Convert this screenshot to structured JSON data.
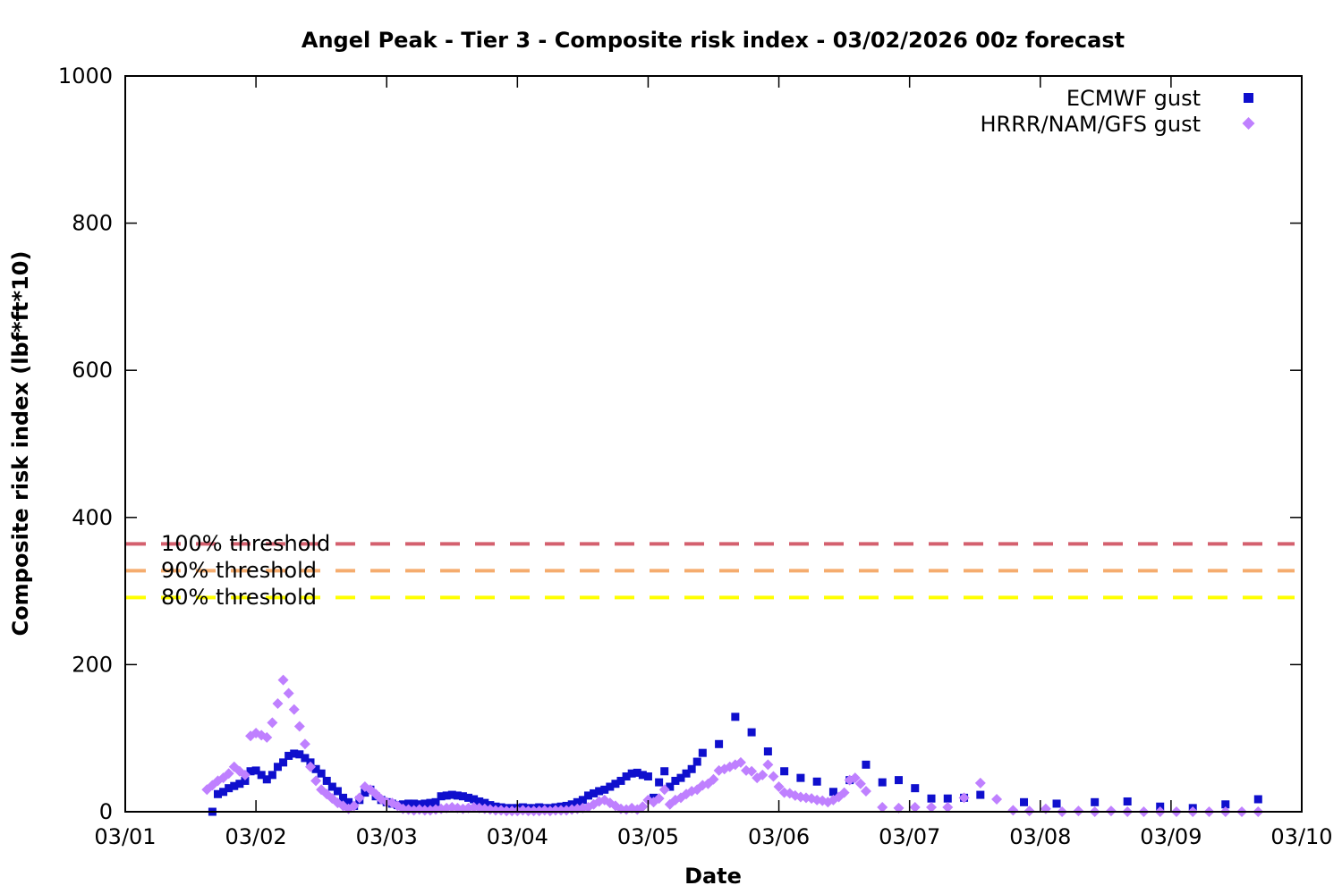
{
  "title": "Angel Peak - Tier 3 - Composite risk index - 03/02/2026 00z forecast",
  "colors": {
    "ecmwf": "#0f0fcd",
    "hrrr": "#bf80ff",
    "threshold_100": "#d4606e",
    "threshold_90": "#f5ac6e",
    "threshold_80": "#ffff00",
    "axis": "#000000",
    "background": "#ffffff"
  },
  "chart_data": {
    "type": "scatter",
    "title": "Angel Peak - Tier 3 - Composite risk index - 03/02/2026 00z forecast",
    "xlabel": "Date",
    "ylabel": "Composite risk index (lbf*ft*10)",
    "x_ticks": [
      "03/01",
      "03/02",
      "03/03",
      "03/04",
      "03/05",
      "03/06",
      "03/07",
      "03/08",
      "03/09",
      "03/10"
    ],
    "y_ticks": [
      0,
      200,
      400,
      600,
      800,
      1000
    ],
    "ylim": [
      0,
      1000
    ],
    "xlim_days": [
      0,
      9
    ],
    "x_unit": "hours since 03/01 00:00",
    "grid": false,
    "legend_position": "top-right-inside",
    "thresholds": [
      {
        "label": "100% threshold",
        "value": 364.0,
        "color": "#d4606e"
      },
      {
        "label": "90% threshold",
        "value": 327.6,
        "color": "#f5ac6e"
      },
      {
        "label": "80% threshold",
        "value": 291.2,
        "color": "#ffff00"
      }
    ],
    "series": [
      {
        "name": "ECMWF gust",
        "marker": "square",
        "color": "#0f0fcd",
        "points": [
          [
            16,
            0
          ],
          [
            17,
            24
          ],
          [
            18,
            27
          ],
          [
            19,
            32
          ],
          [
            20,
            35
          ],
          [
            21,
            38
          ],
          [
            22,
            42
          ],
          [
            23,
            55
          ],
          [
            24,
            56
          ],
          [
            25,
            50
          ],
          [
            26,
            44
          ],
          [
            27,
            50
          ],
          [
            28,
            61
          ],
          [
            29,
            67
          ],
          [
            30,
            76
          ],
          [
            31,
            79
          ],
          [
            32,
            78
          ],
          [
            33,
            73
          ],
          [
            34,
            67
          ],
          [
            35,
            58
          ],
          [
            36,
            52
          ],
          [
            37,
            42
          ],
          [
            38,
            34
          ],
          [
            39,
            28
          ],
          [
            40,
            19
          ],
          [
            41,
            13
          ],
          [
            42,
            8
          ],
          [
            43,
            16
          ],
          [
            44,
            26
          ],
          [
            45,
            30
          ],
          [
            46,
            21
          ],
          [
            47,
            16
          ],
          [
            48,
            13
          ],
          [
            49,
            11
          ],
          [
            50,
            9
          ],
          [
            51,
            10
          ],
          [
            52,
            11
          ],
          [
            53,
            11
          ],
          [
            54,
            10
          ],
          [
            55,
            11
          ],
          [
            56,
            12
          ],
          [
            57,
            13
          ],
          [
            58,
            21
          ],
          [
            59,
            22
          ],
          [
            60,
            23
          ],
          [
            61,
            22
          ],
          [
            62,
            21
          ],
          [
            63,
            19
          ],
          [
            64,
            17
          ],
          [
            65,
            14
          ],
          [
            66,
            12
          ],
          [
            67,
            9
          ],
          [
            68,
            7
          ],
          [
            69,
            6
          ],
          [
            70,
            5
          ],
          [
            71,
            5
          ],
          [
            72,
            5
          ],
          [
            73,
            6
          ],
          [
            74,
            5
          ],
          [
            75,
            5
          ],
          [
            76,
            6
          ],
          [
            77,
            5
          ],
          [
            78,
            5
          ],
          [
            79,
            6
          ],
          [
            80,
            7
          ],
          [
            81,
            8
          ],
          [
            82,
            10
          ],
          [
            83,
            13
          ],
          [
            84,
            16
          ],
          [
            85,
            22
          ],
          [
            86,
            25
          ],
          [
            87,
            28
          ],
          [
            88,
            30
          ],
          [
            89,
            34
          ],
          [
            90,
            38
          ],
          [
            91,
            42
          ],
          [
            92,
            48
          ],
          [
            93,
            52
          ],
          [
            94,
            53
          ],
          [
            95,
            50
          ],
          [
            96,
            48
          ],
          [
            97,
            19
          ],
          [
            98,
            40
          ],
          [
            99,
            55
          ],
          [
            100,
            34
          ],
          [
            101,
            42
          ],
          [
            102,
            46
          ],
          [
            103,
            52
          ],
          [
            104,
            58
          ],
          [
            105,
            68
          ],
          [
            106,
            80
          ],
          [
            109,
            92
          ],
          [
            112,
            129
          ],
          [
            115,
            108
          ],
          [
            118,
            82
          ],
          [
            121,
            55
          ],
          [
            124,
            46
          ],
          [
            127,
            41
          ],
          [
            130,
            27
          ],
          [
            133,
            43
          ],
          [
            136,
            64
          ],
          [
            139,
            40
          ],
          [
            142,
            43
          ],
          [
            145,
            32
          ],
          [
            148,
            18
          ],
          [
            151,
            18
          ],
          [
            154,
            19
          ],
          [
            157,
            23
          ],
          [
            165,
            13
          ],
          [
            171,
            11
          ],
          [
            178,
            13
          ],
          [
            184,
            14
          ],
          [
            190,
            7
          ],
          [
            196,
            5
          ],
          [
            202,
            10
          ],
          [
            208,
            17
          ]
        ]
      },
      {
        "name": "HRRR/NAM/GFS gust",
        "marker": "diamond",
        "color": "#bf80ff",
        "points": [
          [
            15,
            30
          ],
          [
            16,
            36
          ],
          [
            17,
            42
          ],
          [
            18,
            46
          ],
          [
            19,
            52
          ],
          [
            20,
            61
          ],
          [
            21,
            55
          ],
          [
            22,
            50
          ],
          [
            23,
            103
          ],
          [
            24,
            107
          ],
          [
            25,
            104
          ],
          [
            26,
            101
          ],
          [
            27,
            121
          ],
          [
            28,
            147
          ],
          [
            29,
            179
          ],
          [
            30,
            161
          ],
          [
            31,
            139
          ],
          [
            32,
            116
          ],
          [
            33,
            92
          ],
          [
            34,
            61
          ],
          [
            35,
            42
          ],
          [
            36,
            30
          ],
          [
            37,
            24
          ],
          [
            38,
            18
          ],
          [
            39,
            12
          ],
          [
            40,
            8
          ],
          [
            41,
            4
          ],
          [
            42,
            8
          ],
          [
            43,
            19
          ],
          [
            44,
            34
          ],
          [
            45,
            30
          ],
          [
            46,
            24
          ],
          [
            47,
            17
          ],
          [
            48,
            13
          ],
          [
            49,
            12
          ],
          [
            50,
            8
          ],
          [
            51,
            4
          ],
          [
            52,
            3
          ],
          [
            53,
            2
          ],
          [
            54,
            3
          ],
          [
            55,
            2
          ],
          [
            56,
            2
          ],
          [
            57,
            3
          ],
          [
            58,
            4
          ],
          [
            59,
            5
          ],
          [
            60,
            6
          ],
          [
            61,
            5
          ],
          [
            62,
            4
          ],
          [
            63,
            5
          ],
          [
            64,
            6
          ],
          [
            65,
            5
          ],
          [
            66,
            4
          ],
          [
            67,
            3
          ],
          [
            68,
            2
          ],
          [
            69,
            2
          ],
          [
            70,
            1
          ],
          [
            71,
            1
          ],
          [
            72,
            1
          ],
          [
            73,
            2
          ],
          [
            74,
            1
          ],
          [
            75,
            1
          ],
          [
            76,
            1
          ],
          [
            77,
            2
          ],
          [
            78,
            1
          ],
          [
            79,
            2
          ],
          [
            80,
            2
          ],
          [
            81,
            2
          ],
          [
            82,
            3
          ],
          [
            83,
            4
          ],
          [
            84,
            5
          ],
          [
            85,
            6
          ],
          [
            86,
            10
          ],
          [
            87,
            14
          ],
          [
            88,
            16
          ],
          [
            89,
            12
          ],
          [
            90,
            8
          ],
          [
            91,
            4
          ],
          [
            92,
            3
          ],
          [
            93,
            5
          ],
          [
            94,
            3
          ],
          [
            95,
            7
          ],
          [
            96,
            16
          ],
          [
            97,
            13
          ],
          [
            98,
            18
          ],
          [
            99,
            30
          ],
          [
            100,
            10
          ],
          [
            101,
            16
          ],
          [
            102,
            19
          ],
          [
            103,
            24
          ],
          [
            104,
            28
          ],
          [
            105,
            30
          ],
          [
            106,
            36
          ],
          [
            107,
            38
          ],
          [
            108,
            44
          ],
          [
            109,
            56
          ],
          [
            110,
            58
          ],
          [
            111,
            61
          ],
          [
            112,
            64
          ],
          [
            113,
            67
          ],
          [
            114,
            56
          ],
          [
            115,
            55
          ],
          [
            116,
            46
          ],
          [
            117,
            50
          ],
          [
            118,
            64
          ],
          [
            119,
            48
          ],
          [
            120,
            34
          ],
          [
            121,
            26
          ],
          [
            122,
            25
          ],
          [
            123,
            22
          ],
          [
            124,
            20
          ],
          [
            125,
            19
          ],
          [
            126,
            18
          ],
          [
            127,
            16
          ],
          [
            128,
            15
          ],
          [
            129,
            13
          ],
          [
            130,
            16
          ],
          [
            131,
            20
          ],
          [
            132,
            26
          ],
          [
            133,
            43
          ],
          [
            134,
            46
          ],
          [
            135,
            38
          ],
          [
            136,
            28
          ],
          [
            139,
            6
          ],
          [
            142,
            5
          ],
          [
            145,
            6
          ],
          [
            148,
            6
          ],
          [
            151,
            6
          ],
          [
            154,
            19
          ],
          [
            157,
            39
          ],
          [
            160,
            17
          ],
          [
            163,
            2
          ],
          [
            166,
            1
          ],
          [
            169,
            4
          ],
          [
            172,
            0
          ],
          [
            175,
            1
          ],
          [
            178,
            0
          ],
          [
            181,
            1
          ],
          [
            184,
            0
          ],
          [
            187,
            0
          ],
          [
            190,
            0
          ],
          [
            193,
            0
          ],
          [
            196,
            0
          ],
          [
            199,
            0
          ],
          [
            202,
            0
          ],
          [
            205,
            0
          ],
          [
            208,
            0
          ]
        ]
      }
    ]
  }
}
